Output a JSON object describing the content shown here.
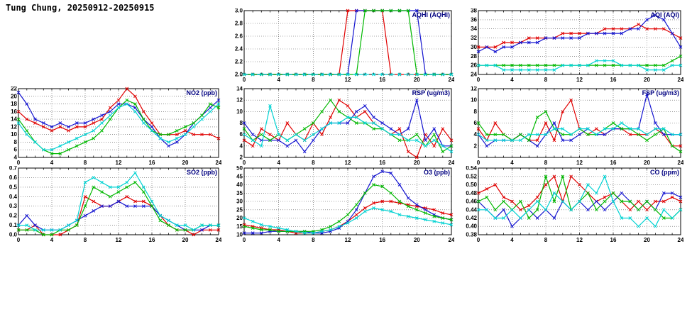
{
  "title": "Tung Chung, 20250912-20250915",
  "colors": {
    "red": "#e00000",
    "blue": "#1414d0",
    "green": "#00b800",
    "cyan": "#00d2d2",
    "chart_title": "#000080"
  },
  "hours": [
    0,
    1,
    2,
    3,
    4,
    5,
    6,
    7,
    8,
    9,
    10,
    11,
    12,
    13,
    14,
    15,
    16,
    17,
    18,
    19,
    20,
    21,
    22,
    23,
    24
  ],
  "x_axis": {
    "min": 0,
    "max": 24,
    "ticks": [
      0,
      4,
      8,
      12,
      16,
      20,
      24
    ]
  },
  "chart_data": [
    {
      "id": "aqhi",
      "type": "line",
      "title": "AQHI (AQHI)",
      "ylim": [
        2.0,
        3.0
      ],
      "yticks": [
        "2.0",
        "2.2",
        "2.4",
        "2.6",
        "2.8",
        "3.0"
      ],
      "series": [
        {
          "name": "red",
          "color": "red",
          "values": [
            2,
            2,
            2,
            2,
            2,
            2,
            2,
            2,
            2,
            2,
            2,
            2,
            3,
            3,
            3,
            3,
            3,
            2,
            2,
            2,
            2,
            2,
            2,
            2,
            2
          ]
        },
        {
          "name": "blue",
          "color": "blue",
          "values": [
            2,
            2,
            2,
            2,
            2,
            2,
            2,
            2,
            2,
            2,
            2,
            2,
            2,
            3,
            3,
            3,
            3,
            3,
            3,
            3,
            3,
            2,
            2,
            2,
            2
          ]
        },
        {
          "name": "green",
          "color": "green",
          "values": [
            2,
            2,
            2,
            2,
            2,
            2,
            2,
            2,
            2,
            2,
            2,
            2,
            2,
            2,
            3,
            3,
            3,
            3,
            3,
            3,
            2,
            2,
            2,
            2,
            2
          ]
        },
        {
          "name": "cyan",
          "color": "cyan",
          "dash": "5 4",
          "values": [
            2,
            2,
            2,
            2,
            2,
            2,
            2,
            2,
            2,
            2,
            2,
            2,
            2,
            2,
            2,
            2,
            2,
            2,
            2,
            2,
            2,
            2,
            2,
            2,
            2
          ]
        }
      ]
    },
    {
      "id": "aqi",
      "type": "line",
      "title": "AQI (AQI)",
      "ylim": [
        24,
        38
      ],
      "yticks": [
        "24",
        "26",
        "28",
        "30",
        "32",
        "34",
        "36",
        "38"
      ],
      "series": [
        {
          "name": "red",
          "color": "red",
          "values": [
            30,
            30,
            30,
            31,
            31,
            31,
            32,
            32,
            32,
            32,
            33,
            33,
            33,
            33,
            33,
            34,
            34,
            34,
            34,
            35,
            34,
            34,
            34,
            33,
            32
          ]
        },
        {
          "name": "blue",
          "color": "blue",
          "values": [
            29,
            30,
            29,
            30,
            30,
            31,
            31,
            31,
            32,
            32,
            32,
            32,
            32,
            33,
            33,
            33,
            33,
            33,
            34,
            34,
            36,
            37,
            36,
            33,
            30
          ]
        },
        {
          "name": "green",
          "color": "green",
          "values": [
            26,
            26,
            26,
            26,
            26,
            26,
            26,
            26,
            26,
            26,
            26,
            26,
            26,
            26,
            26,
            26,
            26,
            26,
            26,
            26,
            26,
            26,
            26,
            27,
            28
          ]
        },
        {
          "name": "cyan",
          "color": "cyan",
          "values": [
            26,
            26,
            26,
            25,
            25,
            25,
            25,
            25,
            25,
            25,
            26,
            26,
            26,
            26,
            27,
            27,
            27,
            26,
            26,
            26,
            25,
            25,
            25,
            26,
            26
          ]
        }
      ]
    },
    {
      "id": "no2",
      "type": "line",
      "title": "NO2 (ppb)",
      "ylim": [
        4,
        22
      ],
      "yticks": [
        "4",
        "6",
        "8",
        "10",
        "12",
        "14",
        "16",
        "18",
        "20",
        "22"
      ],
      "series": [
        {
          "name": "red",
          "color": "red",
          "values": [
            16,
            14,
            13,
            12,
            11,
            12,
            11,
            12,
            12,
            13,
            14,
            17,
            19,
            22,
            20,
            16,
            13,
            10,
            10,
            10,
            11,
            10,
            10,
            10,
            9
          ]
        },
        {
          "name": "blue",
          "color": "blue",
          "values": [
            21,
            18,
            14,
            13,
            12,
            13,
            12,
            13,
            13,
            14,
            15,
            16,
            18,
            18,
            17,
            14,
            12,
            9,
            7,
            8,
            10,
            13,
            15,
            17,
            19
          ]
        },
        {
          "name": "green",
          "color": "green",
          "values": [
            14,
            11,
            8,
            6,
            5,
            5,
            6,
            7,
            8,
            9,
            11,
            14,
            17,
            19,
            18,
            14,
            11,
            10,
            10,
            11,
            12,
            13,
            15,
            18,
            17
          ]
        },
        {
          "name": "cyan",
          "color": "cyan",
          "values": [
            13,
            10,
            8,
            6,
            6,
            7,
            8,
            9,
            10,
            11,
            13,
            15,
            17,
            18,
            16,
            13,
            11,
            9,
            8,
            9,
            10,
            12,
            14,
            16,
            18
          ]
        }
      ]
    },
    {
      "id": "rsp",
      "type": "line",
      "title": "RSP (ug/m3)",
      "ylim": [
        2,
        14
      ],
      "yticks": [
        "2",
        "4",
        "6",
        "8",
        "10",
        "12",
        "14"
      ],
      "series": [
        {
          "name": "red",
          "color": "red",
          "values": [
            5,
            4,
            7,
            6,
            5,
            8,
            6,
            5,
            8,
            6,
            9,
            12,
            11,
            9,
            10,
            8,
            7,
            6,
            7,
            3,
            2,
            6,
            4,
            7,
            5
          ]
        },
        {
          "name": "blue",
          "color": "blue",
          "values": [
            8,
            6,
            5,
            5,
            5,
            4,
            5,
            3,
            5,
            7,
            8,
            8,
            8,
            10,
            11,
            9,
            8,
            7,
            6,
            7,
            12,
            5,
            7,
            4,
            4
          ]
        },
        {
          "name": "green",
          "color": "green",
          "values": [
            7,
            5,
            6,
            5,
            6,
            5,
            6,
            7,
            8,
            10,
            12,
            10,
            9,
            8,
            8,
            7,
            7,
            6,
            5,
            5,
            6,
            4,
            6,
            3,
            4
          ]
        },
        {
          "name": "cyan",
          "color": "cyan",
          "values": [
            6,
            5,
            4,
            11,
            6,
            5,
            6,
            5,
            6,
            7,
            8,
            8,
            9,
            9,
            8,
            8,
            7,
            6,
            6,
            5,
            5,
            4,
            5,
            4,
            3
          ]
        }
      ]
    },
    {
      "id": "fsp",
      "type": "line",
      "title": "FSP (ug/m3)",
      "ylim": [
        0,
        12
      ],
      "yticks": [
        "2",
        "4",
        "6",
        "8",
        "10",
        "12"
      ],
      "series": [
        {
          "name": "red",
          "color": "red",
          "values": [
            5,
            3,
            6,
            4,
            3,
            4,
            3,
            3,
            6,
            3,
            8,
            10,
            5,
            4,
            5,
            4,
            5,
            5,
            4,
            4,
            4,
            5,
            4,
            2,
            2
          ]
        },
        {
          "name": "blue",
          "color": "blue",
          "values": [
            4,
            2,
            3,
            3,
            3,
            4,
            3,
            2,
            4,
            6,
            3,
            3,
            4,
            5,
            4,
            4,
            5,
            5,
            5,
            5,
            11,
            6,
            4,
            4,
            4
          ]
        },
        {
          "name": "green",
          "color": "green",
          "values": [
            6,
            4,
            4,
            4,
            3,
            4,
            3,
            7,
            8,
            5,
            4,
            4,
            5,
            4,
            4,
            5,
            6,
            5,
            5,
            4,
            3,
            4,
            5,
            2,
            1
          ]
        },
        {
          "name": "cyan",
          "color": "cyan",
          "values": [
            4,
            3,
            3,
            3,
            3,
            3,
            4,
            4,
            4,
            5,
            5,
            4,
            5,
            5,
            4,
            5,
            5,
            6,
            5,
            5,
            4,
            5,
            5,
            4,
            4
          ]
        }
      ]
    },
    {
      "id": "so2",
      "type": "line",
      "title": "SO2 (ppb)",
      "ylim": [
        0,
        0.7
      ],
      "yticks": [
        "0.0",
        "0.1",
        "0.2",
        "0.3",
        "0.4",
        "0.5",
        "0.6",
        "0.7"
      ],
      "series": [
        {
          "name": "red",
          "color": "red",
          "values": [
            0.05,
            0.05,
            0.1,
            0,
            0,
            0,
            0.05,
            0.1,
            0.4,
            0.35,
            0.3,
            0.3,
            0.35,
            0.4,
            0.35,
            0.35,
            0.3,
            0.2,
            0.1,
            0.05,
            0.05,
            0,
            0.05,
            0.05,
            0.05
          ]
        },
        {
          "name": "blue",
          "color": "blue",
          "values": [
            0.1,
            0.2,
            0.1,
            0.05,
            0.05,
            0.05,
            0.1,
            0.15,
            0.2,
            0.25,
            0.3,
            0.3,
            0.35,
            0.3,
            0.3,
            0.3,
            0.3,
            0.2,
            0.15,
            0.1,
            0.05,
            0.05,
            0.05,
            0.1,
            0.1
          ]
        },
        {
          "name": "green",
          "color": "green",
          "values": [
            0.05,
            0.05,
            0.05,
            0,
            0,
            0.05,
            0.05,
            0.1,
            0.3,
            0.5,
            0.45,
            0.4,
            0.45,
            0.5,
            0.55,
            0.45,
            0.3,
            0.15,
            0.1,
            0.05,
            0.05,
            0.05,
            0.1,
            0.1,
            0.1
          ]
        },
        {
          "name": "cyan",
          "color": "cyan",
          "values": [
            0.1,
            0.1,
            0.05,
            0.05,
            0.05,
            0.05,
            0.1,
            0.15,
            0.55,
            0.6,
            0.55,
            0.5,
            0.5,
            0.55,
            0.65,
            0.5,
            0.35,
            0.2,
            0.15,
            0.1,
            0.1,
            0.05,
            0.1,
            0.1,
            0.1
          ]
        }
      ]
    },
    {
      "id": "o3",
      "type": "line",
      "title": "O3 (ppb)",
      "ylim": [
        10,
        50
      ],
      "yticks": [
        "10",
        "15",
        "20",
        "25",
        "30",
        "35",
        "40",
        "45",
        "50"
      ],
      "series": [
        {
          "name": "red",
          "color": "red",
          "values": [
            16,
            15,
            14,
            13,
            13,
            12,
            11,
            11,
            11,
            12,
            13,
            15,
            18,
            22,
            26,
            29,
            30,
            30,
            29,
            28,
            27,
            26,
            25,
            23,
            22
          ]
        },
        {
          "name": "blue",
          "color": "blue",
          "values": [
            11,
            11,
            11,
            12,
            12,
            12,
            12,
            12,
            11,
            11,
            12,
            14,
            18,
            25,
            35,
            45,
            48,
            47,
            40,
            32,
            28,
            25,
            22,
            20,
            19
          ]
        },
        {
          "name": "green",
          "color": "green",
          "values": [
            15,
            14,
            13,
            13,
            12,
            12,
            12,
            12,
            12,
            13,
            15,
            18,
            22,
            28,
            35,
            40,
            39,
            35,
            30,
            27,
            25,
            23,
            21,
            20,
            19
          ]
        },
        {
          "name": "cyan",
          "color": "cyan",
          "values": [
            20,
            18,
            16,
            15,
            14,
            13,
            12,
            11,
            11,
            12,
            13,
            15,
            17,
            20,
            24,
            26,
            25,
            24,
            22,
            21,
            20,
            19,
            18,
            17,
            16
          ]
        }
      ]
    },
    {
      "id": "co",
      "type": "line",
      "title": "CO (ppm)",
      "ylim": [
        0.38,
        0.54
      ],
      "yticks": [
        "0.38",
        "0.40",
        "0.42",
        "0.44",
        "0.46",
        "0.48",
        "0.50",
        "0.52",
        "0.54"
      ],
      "series": [
        {
          "name": "red",
          "color": "red",
          "values": [
            0.48,
            0.49,
            0.5,
            0.47,
            0.46,
            0.44,
            0.45,
            0.47,
            0.5,
            0.52,
            0.46,
            0.52,
            0.5,
            0.48,
            0.46,
            0.47,
            0.48,
            0.46,
            0.44,
            0.46,
            0.44,
            0.46,
            0.46,
            0.47,
            0.46
          ]
        },
        {
          "name": "blue",
          "color": "blue",
          "values": [
            0.46,
            0.44,
            0.42,
            0.44,
            0.4,
            0.42,
            0.44,
            0.42,
            0.44,
            0.42,
            0.46,
            0.44,
            0.46,
            0.44,
            0.46,
            0.44,
            0.46,
            0.48,
            0.46,
            0.44,
            0.46,
            0.44,
            0.48,
            0.48,
            0.47
          ]
        },
        {
          "name": "green",
          "color": "green",
          "values": [
            0.46,
            0.47,
            0.44,
            0.46,
            0.44,
            0.46,
            0.42,
            0.44,
            0.52,
            0.46,
            0.52,
            0.44,
            0.46,
            0.48,
            0.44,
            0.46,
            0.48,
            0.46,
            0.46,
            0.44,
            0.46,
            0.44,
            0.42,
            0.42,
            0.44
          ]
        },
        {
          "name": "cyan",
          "color": "cyan",
          "values": [
            0.44,
            0.44,
            0.42,
            0.42,
            0.44,
            0.42,
            0.44,
            0.46,
            0.44,
            0.48,
            0.46,
            0.44,
            0.46,
            0.5,
            0.48,
            0.52,
            0.46,
            0.42,
            0.42,
            0.4,
            0.42,
            0.4,
            0.44,
            0.42,
            0.44
          ]
        }
      ]
    }
  ]
}
